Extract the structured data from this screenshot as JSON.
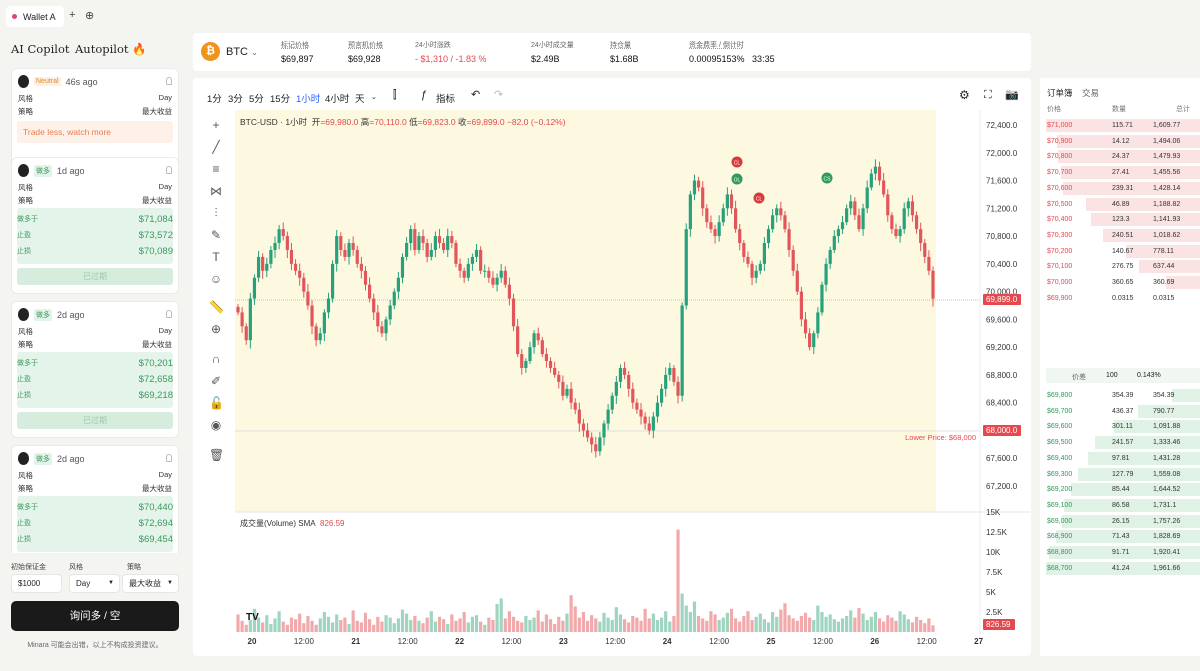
{
  "tabbar": {
    "tab_label": "Wallet A",
    "add": "+",
    "new_icon": "⊕"
  },
  "left": {
    "copilot": "AI Copilot",
    "autopilot": "Autopilot 🔥",
    "cards": [
      {
        "badge": "Neutral",
        "time": "46s ago",
        "style_label": "风格",
        "style": "Day",
        "strategy_label": "策略",
        "strategy": "最大收益",
        "advice": "Trade less, watch more"
      },
      {
        "badge": "做多",
        "time": "1d ago",
        "style_label": "风格",
        "style": "Day",
        "strategy_label": "策略",
        "strategy": "最大收益",
        "rows": [
          {
            "k": "做多于",
            "v": "$71,084"
          },
          {
            "k": "止盈",
            "v": "$73,572"
          },
          {
            "k": "止损",
            "v": "$70,089"
          }
        ],
        "btn": "已过期"
      },
      {
        "badge": "做多",
        "time": "2d ago",
        "style_label": "风格",
        "style": "Day",
        "strategy_label": "策略",
        "strategy": "最大收益",
        "rows": [
          {
            "k": "做多于",
            "v": "$70,201"
          },
          {
            "k": "止盈",
            "v": "$72,658"
          },
          {
            "k": "止损",
            "v": "$69,218"
          }
        ],
        "btn": "已过期"
      },
      {
        "badge": "做多",
        "time": "2d ago",
        "style_label": "风格",
        "style": "Day",
        "strategy_label": "策略",
        "strategy": "最大收益",
        "rows": [
          {
            "k": "做多于",
            "v": "$70,440"
          },
          {
            "k": "止盈",
            "v": "$72,694"
          },
          {
            "k": "止损",
            "v": "$69,454"
          }
        ]
      }
    ],
    "margin_label": "初始保证金",
    "margin": "$1000",
    "style_label": "风格",
    "style": "Day",
    "strategy_label": "策略",
    "strategy": "最大收益",
    "ask": "询问多 / 空",
    "disclaimer": "Minara 可能会出错，以上不构成投资建议。"
  },
  "top": {
    "symbol": "BTC",
    "coin": "₿",
    "stats": [
      {
        "l": "标记价格",
        "v": "$69,897"
      },
      {
        "l": "预言机价格",
        "v": "$69,928"
      },
      {
        "l": "24小时涨跌",
        "v": "- $1,310 / -1.83 %"
      },
      {
        "l": "24小时成交量",
        "v": "$2.49B"
      },
      {
        "l": "持仓量",
        "v": "$1.68B"
      },
      {
        "l": "资金费率 / 倒计时",
        "v": "0.00095153%   33:35"
      }
    ]
  },
  "toolbar": {
    "intervals": [
      "1分",
      "3分",
      "5分",
      "15分",
      "1小时",
      "4小时",
      "天"
    ],
    "indicator": "指标"
  },
  "legend": {
    "title": "BTC-USD · 1小时",
    "o_l": "开",
    "o": "=69,980.0",
    "h_l": "高",
    "h": "=70,110.0",
    "l_l": "低",
    "l": "=69,823.0",
    "c_l": "收",
    "c": "=69,899.0",
    "chg": "−82.0 (−0.12%)",
    "vol": "成交量(Volume) SMA",
    "vol_v": "826.59"
  },
  "chart_data": {
    "type": "candlestick",
    "y_ticks": [
      "72,400.0",
      "72,000.0",
      "71,600.0",
      "71,200.0",
      "70,800.0",
      "70,400.0",
      "70,000.0",
      "69,600.0",
      "69,200.0",
      "68,800.0",
      "68,400.0",
      "68,000.0",
      "67,600.0",
      "67,200.0"
    ],
    "x_ticks": [
      "20",
      "12:00",
      "21",
      "12:00",
      "22",
      "12:00",
      "23",
      "12:00",
      "24",
      "12:00",
      "25",
      "12:00",
      "26",
      "12:00",
      "27"
    ],
    "last_price": "69,899.0",
    "lower_label": "Lower Price: $68,000",
    "lower_price": "68,000.0",
    "vol_ticks": [
      "15K",
      "12.5K",
      "10K",
      "7.5K",
      "5K",
      "2.5K"
    ],
    "vol_last": "826.59",
    "markers": [
      "CL",
      "OL",
      "CL",
      "CS"
    ],
    "ylim": [
      67000,
      72500
    ],
    "closes": [
      69700,
      69500,
      69300,
      69900,
      70200,
      70500,
      70300,
      70400,
      70600,
      70700,
      70900,
      70800,
      70600,
      70400,
      70300,
      70200,
      70000,
      69800,
      69500,
      69300,
      69400,
      69700,
      69900,
      70400,
      70800,
      70600,
      70500,
      70700,
      70600,
      70400,
      70300,
      70100,
      69900,
      69700,
      69500,
      69400,
      69600,
      69800,
      70000,
      70200,
      70500,
      70700,
      70900,
      70600,
      70800,
      70700,
      70500,
      70600,
      70800,
      70700,
      70600,
      70800,
      70700,
      70400,
      70300,
      70200,
      70400,
      70500,
      70600,
      70300,
      70300,
      70200,
      70100,
      70200,
      70300,
      70100,
      69900,
      69500,
      69100,
      68900,
      69000,
      69200,
      69400,
      69300,
      69100,
      69000,
      68900,
      68800,
      68700,
      68500,
      68600,
      68400,
      68300,
      68100,
      68000,
      67900,
      67800,
      67700,
      67900,
      68100,
      68300,
      68500,
      68700,
      68900,
      68800,
      68600,
      68400,
      68300,
      68200,
      68100,
      68000,
      68200,
      68400,
      68600,
      68800,
      68900,
      68700,
      68500,
      69800,
      70900,
      71400,
      71600,
      71500,
      71200,
      71000,
      70900,
      70800,
      71000,
      71200,
      71400,
      71200,
      70900,
      70700,
      70500,
      70400,
      70200,
      70300,
      70400,
      70700,
      70900,
      71100,
      71200,
      71100,
      70900,
      70600,
      70300,
      70000,
      69600,
      69400,
      69200,
      69400,
      69700,
      70100,
      70400,
      70600,
      70800,
      70900,
      71000,
      71200,
      71300,
      71100,
      70900,
      71200,
      71500,
      71700,
      71800,
      71600,
      71400,
      71100,
      70900,
      70800,
      70900,
      71200,
      71300,
      71100,
      70900,
      70700,
      70500,
      70300,
      69900
    ],
    "volumes": [
      2200,
      1400,
      900,
      1500,
      2900,
      1800,
      1200,
      2100,
      1000,
      1700,
      2600,
      1300,
      900,
      1800,
      1600,
      2300,
      1100,
      2000,
      1400,
      900,
      1700,
      2500,
      1900,
      1200,
      2200,
      1500,
      1800,
      1000,
      2700,
      1400,
      1200,
      2400,
      1600,
      900,
      1900,
      1300,
      2100,
      1800,
      1100,
      1700,
      2800,
      2300,
      1500,
      2000,
      1400,
      1100,
      1800,
      2600,
      1300,
      1900,
      1600,
      1000,
      2200,
      1400,
      1700,
      2500,
      1200,
      1900,
      2100,
      1300,
      900,
      1800,
      1500,
      3500,
      4200,
      1700,
      2600,
      1900,
      1400,
      1200,
      2000,
      1500,
      1800,
      2700,
      1300,
      2200,
      1600,
      1000,
      1900,
      1400,
      2300,
      4600,
      3200,
      1800,
      2500,
      1400,
      2100,
      1700,
      1300,
      2400,
      1800,
      1500,
      3100,
      2200,
      1600,
      1200,
      2000,
      1800,
      1400,
      2900,
      1700,
      2300,
      1500,
      1800,
      2600,
      1300,
      2000,
      12800,
      4800,
      3300,
      2500,
      3800,
      2000,
      1700,
      1400,
      2600,
      2200,
      1500,
      1800,
      2400,
      2900,
      1700,
      1300,
      2000,
      2600,
      1500,
      1900,
      2300,
      1600,
      1200,
      2500,
      1900,
      2800,
      3600,
      2100,
      1700,
      1400,
      2000,
      2400,
      1800,
      1500,
      3300,
      2500,
      1900,
      2200,
      1600,
      1300,
      1700,
      2000,
      2700,
      1800,
      3000,
      2300,
      1500,
      1900,
      2500,
      1700,
      1300,
      2100,
      1800,
      1400,
      2600,
      2200,
      1600,
      1200,
      1900,
      1500,
      1100,
      1700,
      830
    ]
  },
  "orderbook": {
    "tab1": "订单簿",
    "tab2": "交易",
    "h_price": "价格",
    "h_qty": "数量",
    "h_total": "总计",
    "asks": [
      {
        "p": "$71,000",
        "q": "115.71",
        "t": "1,609.77"
      },
      {
        "p": "$70,900",
        "q": "14.12",
        "t": "1,494.06"
      },
      {
        "p": "$70,800",
        "q": "24.37",
        "t": "1,479.93"
      },
      {
        "p": "$70,700",
        "q": "27.41",
        "t": "1,455.56"
      },
      {
        "p": "$70,600",
        "q": "239.31",
        "t": "1,428.14"
      },
      {
        "p": "$70,500",
        "q": "46.89",
        "t": "1,188.82"
      },
      {
        "p": "$70,400",
        "q": "123.3",
        "t": "1,141.93"
      },
      {
        "p": "$70,300",
        "q": "240.51",
        "t": "1,018.62"
      },
      {
        "p": "$70,200",
        "q": "140.67",
        "t": "778.11"
      },
      {
        "p": "$70,100",
        "q": "276.75",
        "t": "637.44"
      },
      {
        "p": "$70,000",
        "q": "360.65",
        "t": "360.69"
      },
      {
        "p": "$69,900",
        "q": "0.0315",
        "t": "0.0315"
      }
    ],
    "spread_label": "价差",
    "spread": "100",
    "spread_pct": "0.143%",
    "bids": [
      {
        "p": "$69,800",
        "q": "354.39",
        "t": "354.39"
      },
      {
        "p": "$69,700",
        "q": "436.37",
        "t": "790.77"
      },
      {
        "p": "$69,600",
        "q": "301.11",
        "t": "1,091.88"
      },
      {
        "p": "$69,500",
        "q": "241.57",
        "t": "1,333.46"
      },
      {
        "p": "$69,400",
        "q": "97.81",
        "t": "1,431.28"
      },
      {
        "p": "$69,300",
        "q": "127.79",
        "t": "1,559.08"
      },
      {
        "p": "$69,200",
        "q": "85.44",
        "t": "1,644.52"
      },
      {
        "p": "$69,100",
        "q": "86.58",
        "t": "1,731.1"
      },
      {
        "p": "$69,000",
        "q": "26.15",
        "t": "1,757.26"
      },
      {
        "p": "$68,900",
        "q": "71.43",
        "t": "1,828.69"
      },
      {
        "p": "$68,800",
        "q": "91.71",
        "t": "1,920.41"
      },
      {
        "p": "$68,700",
        "q": "41.24",
        "t": "1,961.66"
      }
    ]
  }
}
